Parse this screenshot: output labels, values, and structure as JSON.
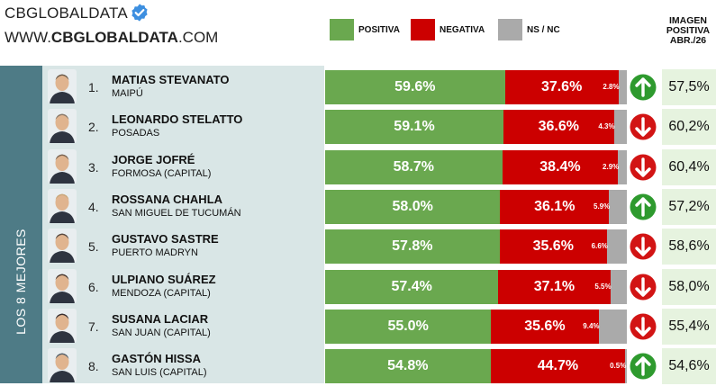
{
  "brand": {
    "name": "CBGLOBALDATA",
    "url_prefix": "WWW.",
    "url_bold": "CBGLOBALDATA",
    "url_suffix": ".COM"
  },
  "legend": [
    {
      "label": "POSITIVA",
      "color": "#6aa84f"
    },
    {
      "label": "NEGATIVA",
      "color": "#cc0000"
    },
    {
      "label": "NS / NC",
      "color": "#aaaaaa"
    }
  ],
  "image_header": [
    "IMAGEN",
    "POSITIVA",
    "ABR./26"
  ],
  "sidebar_label": "LOS 8 MEJORES",
  "colors": {
    "positive": "#6aa84f",
    "negative": "#cc0000",
    "nsnc": "#aaaaaa",
    "up": "#2e9a2e",
    "down": "#d21414",
    "sidebar": "#4e7b86",
    "panel": "#d9e6e6",
    "image_cell": "#e6f3df"
  },
  "chart_data": {
    "type": "bar",
    "stacked": true,
    "orientation": "horizontal",
    "categories": [
      "MATIAS STEVANATO",
      "LEONARDO STELATTO",
      "JORGE JOFRÉ",
      "ROSSANA CHAHLA",
      "GUSTAVO SASTRE",
      "ULPIANO SUÁREZ",
      "SUSANA LACIAR",
      "GASTÓN HISSA"
    ],
    "series": [
      {
        "name": "POSITIVA",
        "values": [
          59.6,
          59.1,
          58.7,
          58.0,
          57.8,
          57.4,
          55.0,
          54.8
        ]
      },
      {
        "name": "NEGATIVA",
        "values": [
          37.6,
          36.6,
          38.4,
          36.1,
          35.6,
          37.1,
          35.6,
          44.7
        ]
      },
      {
        "name": "NS / NC",
        "values": [
          2.8,
          4.3,
          2.9,
          5.9,
          6.6,
          5.5,
          9.4,
          0.5
        ]
      }
    ]
  },
  "rows": [
    {
      "rank": "1.",
      "name": "MATIAS STEVANATO",
      "city": "MAIPÚ",
      "pos": "59.6%",
      "neg": "37.6%",
      "ns": "2.8%",
      "trend": "up",
      "image": "57,5%"
    },
    {
      "rank": "2.",
      "name": "LEONARDO STELATTO",
      "city": "POSADAS",
      "pos": "59.1%",
      "neg": "36.6%",
      "ns": "4.3%",
      "trend": "down",
      "image": "60,2%"
    },
    {
      "rank": "3.",
      "name": "JORGE JOFRÉ",
      "city": "FORMOSA (CAPITAL)",
      "pos": "58.7%",
      "neg": "38.4%",
      "ns": "2.9%",
      "trend": "down",
      "image": "60,4%"
    },
    {
      "rank": "4.",
      "name": "ROSSANA CHAHLA",
      "city": "SAN MIGUEL DE TUCUMÁN",
      "pos": "58.0%",
      "neg": "36.1%",
      "ns": "5.9%",
      "trend": "up",
      "image": "57,2%"
    },
    {
      "rank": "5.",
      "name": "GUSTAVO SASTRE",
      "city": "PUERTO MADRYN",
      "pos": "57.8%",
      "neg": "35.6%",
      "ns": "6.6%",
      "trend": "down",
      "image": "58,6%"
    },
    {
      "rank": "6.",
      "name": "ULPIANO SUÁREZ",
      "city": "MENDOZA (CAPITAL)",
      "pos": "57.4%",
      "neg": "37.1%",
      "ns": "5.5%",
      "trend": "down",
      "image": "58,0%"
    },
    {
      "rank": "7.",
      "name": "SUSANA LACIAR",
      "city": "SAN JUAN (CAPITAL)",
      "pos": "55.0%",
      "neg": "35.6%",
      "ns": "9.4%",
      "trend": "down",
      "image": "55,4%"
    },
    {
      "rank": "8.",
      "name": "GASTÓN HISSA",
      "city": "SAN LUIS (CAPITAL)",
      "pos": "54.8%",
      "neg": "44.7%",
      "ns": "0.5%",
      "trend": "up",
      "image": "54,6%"
    }
  ]
}
